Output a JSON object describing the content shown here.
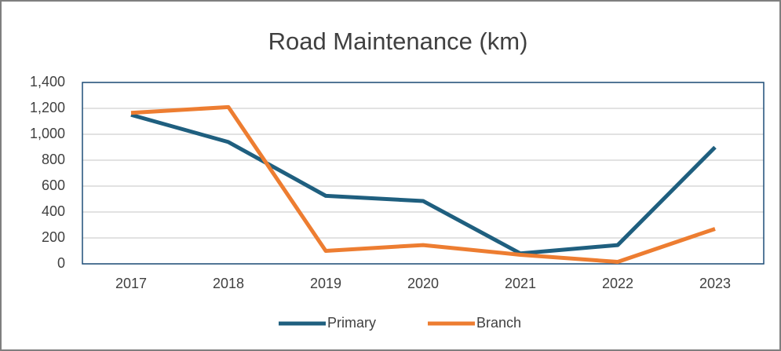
{
  "chart_data": {
    "type": "line",
    "title": "Road Maintenance (km)",
    "categories": [
      "2017",
      "2018",
      "2019",
      "2020",
      "2021",
      "2022",
      "2023"
    ],
    "series": [
      {
        "name": "Primary",
        "color": "#1f5f7f",
        "values": [
          1150,
          940,
          525,
          485,
          80,
          145,
          900
        ]
      },
      {
        "name": "Branch",
        "color": "#ed7d31",
        "values": [
          1165,
          1210,
          100,
          145,
          70,
          15,
          270
        ]
      }
    ],
    "ylim": [
      0,
      1400
    ],
    "yticks": [
      0,
      200,
      400,
      600,
      800,
      {
        "value": 1000,
        "label": "1,000"
      },
      {
        "value": 1200,
        "label": "1,200"
      },
      {
        "value": 1400,
        "label": "1,400"
      }
    ],
    "grid": true,
    "legend": "bottom"
  }
}
